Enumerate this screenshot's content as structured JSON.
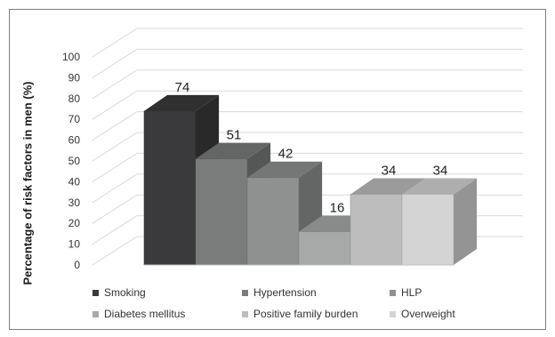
{
  "chart_data": {
    "type": "bar",
    "ylabel": "Percentage of risk factors in men (%)",
    "ylim": [
      0,
      100
    ],
    "yticks": [
      0,
      10,
      20,
      30,
      40,
      50,
      60,
      70,
      80,
      90,
      100
    ],
    "grid": true,
    "legend": "bottom",
    "series": [
      {
        "name": "Smoking",
        "value": 74,
        "color": "#3a3a3c"
      },
      {
        "name": "Hypertension",
        "value": 51,
        "color": "#7a7b7b"
      },
      {
        "name": "HLP",
        "value": 42,
        "color": "#8f9090"
      },
      {
        "name": "Diabetes mellitus",
        "value": 16,
        "color": "#a7a8a8"
      },
      {
        "name": "Positive family burden",
        "value": 34,
        "color": "#bdbdbd"
      },
      {
        "name": "Overweight",
        "value": 34,
        "color": "#d4d4d4"
      }
    ]
  }
}
